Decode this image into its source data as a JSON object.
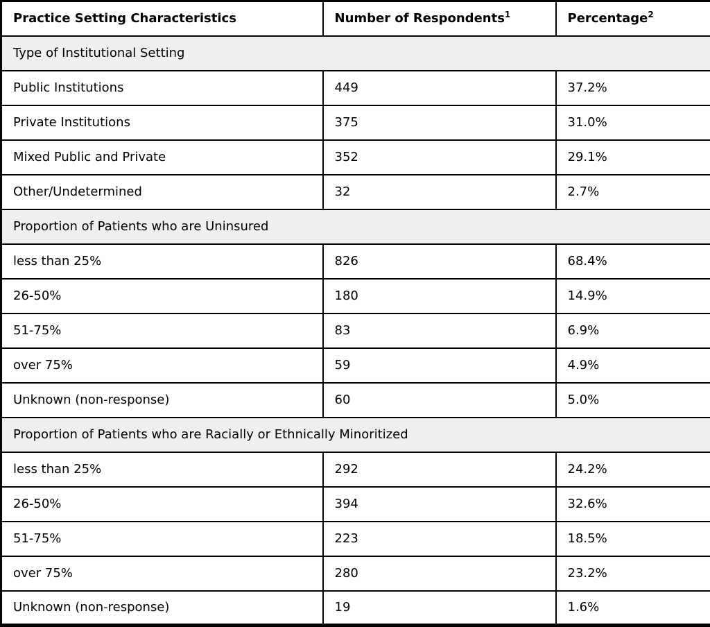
{
  "colors": {
    "border": "#000000",
    "section_row_bg": "#efefef",
    "data_row_bg": "#ffffff",
    "text": "#000000"
  },
  "table": {
    "columns": [
      {
        "label": "Practice Setting Characteristics",
        "footnote_marker": ""
      },
      {
        "label": "Number of Respondents",
        "footnote_marker": "1"
      },
      {
        "label": "Percentage",
        "footnote_marker": "2"
      }
    ],
    "sections": [
      {
        "title": "Type of Institutional Setting",
        "rows": [
          {
            "label": "Public Institutions",
            "respondents": "449",
            "percentage": "37.2%"
          },
          {
            "label": "Private Institutions",
            "respondents": "375",
            "percentage": "31.0%"
          },
          {
            "label": "Mixed Public and Private",
            "respondents": "352",
            "percentage": "29.1%"
          },
          {
            "label": "Other/Undetermined",
            "respondents": "32",
            "percentage": "2.7%"
          }
        ]
      },
      {
        "title": "Proportion of Patients who are Uninsured",
        "rows": [
          {
            "label": "less than 25%",
            "respondents": "826",
            "percentage": "68.4%"
          },
          {
            "label": "26-50%",
            "respondents": "180",
            "percentage": "14.9%"
          },
          {
            "label": "51-75%",
            "respondents": "83",
            "percentage": "6.9%"
          },
          {
            "label": "over 75%",
            "respondents": "59",
            "percentage": "4.9%"
          },
          {
            "label": "Unknown (non-response)",
            "respondents": "60",
            "percentage": "5.0%"
          }
        ]
      },
      {
        "title": "Proportion of Patients who are Racially or Ethnically Minoritized",
        "rows": [
          {
            "label": "less than 25%",
            "respondents": "292",
            "percentage": "24.2%"
          },
          {
            "label": "26-50%",
            "respondents": "394",
            "percentage": "32.6%"
          },
          {
            "label": "51-75%",
            "respondents": "223",
            "percentage": "18.5%"
          },
          {
            "label": "over 75%",
            "respondents": "280",
            "percentage": "23.2%"
          },
          {
            "label": "Unknown (non-response)",
            "respondents": "19",
            "percentage": "1.6%"
          }
        ]
      }
    ]
  }
}
